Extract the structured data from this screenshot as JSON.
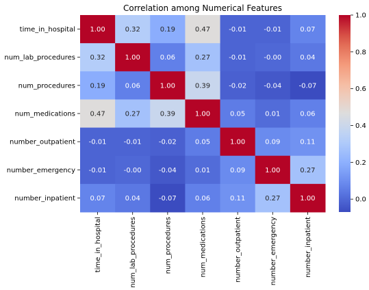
{
  "chart_data": {
    "type": "heatmap",
    "title": "Correlation among Numerical Features",
    "row_labels": [
      "time_in_hospital",
      "num_lab_procedures",
      "num_procedures",
      "num_medications",
      "number_outpatient",
      "number_emergency",
      "number_inpatient"
    ],
    "col_labels": [
      "time_in_hospital",
      "num_lab_procedures",
      "num_procedures",
      "num_medications",
      "number_outpatient",
      "number_emergency",
      "number_inpatient"
    ],
    "values": [
      [
        1.0,
        0.32,
        0.19,
        0.47,
        -0.01,
        -0.01,
        0.07
      ],
      [
        0.32,
        1.0,
        0.06,
        0.27,
        -0.01,
        -0.0,
        0.04
      ],
      [
        0.19,
        0.06,
        1.0,
        0.39,
        -0.02,
        -0.04,
        -0.07
      ],
      [
        0.47,
        0.27,
        0.39,
        1.0,
        0.05,
        0.01,
        0.06
      ],
      [
        -0.01,
        -0.01,
        -0.02,
        0.05,
        1.0,
        0.09,
        0.11
      ],
      [
        -0.01,
        -0.0,
        -0.04,
        0.01,
        0.09,
        1.0,
        0.27
      ],
      [
        0.07,
        0.04,
        -0.07,
        0.06,
        0.11,
        0.27,
        1.0
      ]
    ],
    "cell_labels": [
      [
        "1.00",
        "0.32",
        "0.19",
        "0.47",
        "-0.01",
        "-0.01",
        "0.07"
      ],
      [
        "0.32",
        "1.00",
        "0.06",
        "0.27",
        "-0.01",
        "-0.00",
        "0.04"
      ],
      [
        "0.19",
        "0.06",
        "1.00",
        "0.39",
        "-0.02",
        "-0.04",
        "-0.07"
      ],
      [
        "0.47",
        "0.27",
        "0.39",
        "1.00",
        "0.05",
        "0.01",
        "0.06"
      ],
      [
        "-0.01",
        "-0.01",
        "-0.02",
        "0.05",
        "1.00",
        "0.09",
        "0.11"
      ],
      [
        "-0.01",
        "-0.00",
        "-0.04",
        "0.01",
        "0.09",
        "1.00",
        "0.27"
      ],
      [
        "0.07",
        "0.04",
        "-0.07",
        "0.06",
        "0.11",
        "0.27",
        "1.00"
      ]
    ],
    "colormap": "coolwarm",
    "colorbar": {
      "vmin": -0.07,
      "vmax": 1.0,
      "ticks": [
        0.0,
        0.2,
        0.4,
        0.6,
        0.8,
        1.0
      ],
      "tick_labels": [
        "0.0",
        "0.2",
        "0.4",
        "0.6",
        "0.8",
        "1.0"
      ]
    },
    "grid": false
  }
}
